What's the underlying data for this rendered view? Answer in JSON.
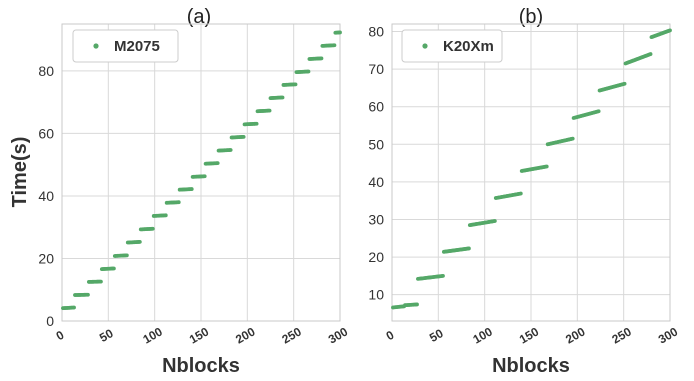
{
  "colors": {
    "marker": "#55a868"
  },
  "chart_data": [
    {
      "type": "scatter",
      "title": "(a)",
      "xlabel": "Nblocks",
      "ylabel": "Time(s)",
      "xlim": [
        0,
        300
      ],
      "ylim": [
        0,
        95
      ],
      "xticks": [
        "0",
        "50",
        "100",
        "150",
        "200",
        "250",
        "300"
      ],
      "yticks": [
        "0",
        "20",
        "40",
        "60",
        "80"
      ],
      "grid": true,
      "legend_position": "top-left",
      "series": [
        {
          "name": "M2075",
          "steps": [
            {
              "x_start": 1,
              "x_end": 13,
              "y_start": 4.1,
              "y_end": 4.3
            },
            {
              "x_start": 14,
              "x_end": 28,
              "y_start": 8.3,
              "y_end": 8.4
            },
            {
              "x_start": 29,
              "x_end": 42,
              "y_start": 12.5,
              "y_end": 12.6
            },
            {
              "x_start": 43,
              "x_end": 56,
              "y_start": 16.6,
              "y_end": 16.8
            },
            {
              "x_start": 57,
              "x_end": 70,
              "y_start": 20.8,
              "y_end": 21.0
            },
            {
              "x_start": 71,
              "x_end": 84,
              "y_start": 25.1,
              "y_end": 25.3
            },
            {
              "x_start": 85,
              "x_end": 98,
              "y_start": 29.3,
              "y_end": 29.5
            },
            {
              "x_start": 99,
              "x_end": 112,
              "y_start": 33.6,
              "y_end": 33.8
            },
            {
              "x_start": 113,
              "x_end": 126,
              "y_start": 37.8,
              "y_end": 38.0
            },
            {
              "x_start": 127,
              "x_end": 140,
              "y_start": 42.0,
              "y_end": 42.2
            },
            {
              "x_start": 141,
              "x_end": 154,
              "y_start": 46.1,
              "y_end": 46.3
            },
            {
              "x_start": 155,
              "x_end": 168,
              "y_start": 50.3,
              "y_end": 50.5
            },
            {
              "x_start": 169,
              "x_end": 182,
              "y_start": 54.5,
              "y_end": 54.7
            },
            {
              "x_start": 183,
              "x_end": 196,
              "y_start": 58.7,
              "y_end": 58.9
            },
            {
              "x_start": 197,
              "x_end": 210,
              "y_start": 62.9,
              "y_end": 63.1
            },
            {
              "x_start": 211,
              "x_end": 224,
              "y_start": 67.1,
              "y_end": 67.3
            },
            {
              "x_start": 225,
              "x_end": 238,
              "y_start": 71.3,
              "y_end": 71.5
            },
            {
              "x_start": 239,
              "x_end": 252,
              "y_start": 75.5,
              "y_end": 75.7
            },
            {
              "x_start": 253,
              "x_end": 266,
              "y_start": 79.6,
              "y_end": 79.8
            },
            {
              "x_start": 267,
              "x_end": 280,
              "y_start": 83.8,
              "y_end": 84.0
            },
            {
              "x_start": 281,
              "x_end": 294,
              "y_start": 88.0,
              "y_end": 88.2
            },
            {
              "x_start": 295,
              "x_end": 300,
              "y_start": 92.2,
              "y_end": 92.3
            }
          ]
        }
      ]
    },
    {
      "type": "scatter",
      "title": "(b)",
      "xlabel": "Nblocks",
      "ylabel": "",
      "xlim": [
        0,
        300
      ],
      "ylim": [
        3,
        82
      ],
      "xticks": [
        "0",
        "50",
        "100",
        "150",
        "200",
        "250",
        "300"
      ],
      "yticks": [
        "10",
        "20",
        "30",
        "40",
        "50",
        "60",
        "70",
        "80"
      ],
      "grid": true,
      "legend_position": "top-left",
      "series": [
        {
          "name": "K20Xm",
          "steps": [
            {
              "x_start": 1,
              "x_end": 13,
              "y_start": 6.6,
              "y_end": 6.9
            },
            {
              "x_start": 14,
              "x_end": 27,
              "y_start": 7.2,
              "y_end": 7.4
            },
            {
              "x_start": 28,
              "x_end": 55,
              "y_start": 14.2,
              "y_end": 15.0
            },
            {
              "x_start": 56,
              "x_end": 83,
              "y_start": 21.4,
              "y_end": 22.3
            },
            {
              "x_start": 84,
              "x_end": 111,
              "y_start": 28.5,
              "y_end": 29.6
            },
            {
              "x_start": 112,
              "x_end": 139,
              "y_start": 35.7,
              "y_end": 36.9
            },
            {
              "x_start": 140,
              "x_end": 167,
              "y_start": 42.9,
              "y_end": 44.1
            },
            {
              "x_start": 168,
              "x_end": 195,
              "y_start": 50.0,
              "y_end": 51.5
            },
            {
              "x_start": 196,
              "x_end": 223,
              "y_start": 57.0,
              "y_end": 58.8
            },
            {
              "x_start": 224,
              "x_end": 251,
              "y_start": 64.3,
              "y_end": 66.1
            },
            {
              "x_start": 252,
              "x_end": 279,
              "y_start": 71.5,
              "y_end": 74.0
            },
            {
              "x_start": 280,
              "x_end": 300,
              "y_start": 78.5,
              "y_end": 80.3
            }
          ]
        }
      ]
    }
  ]
}
